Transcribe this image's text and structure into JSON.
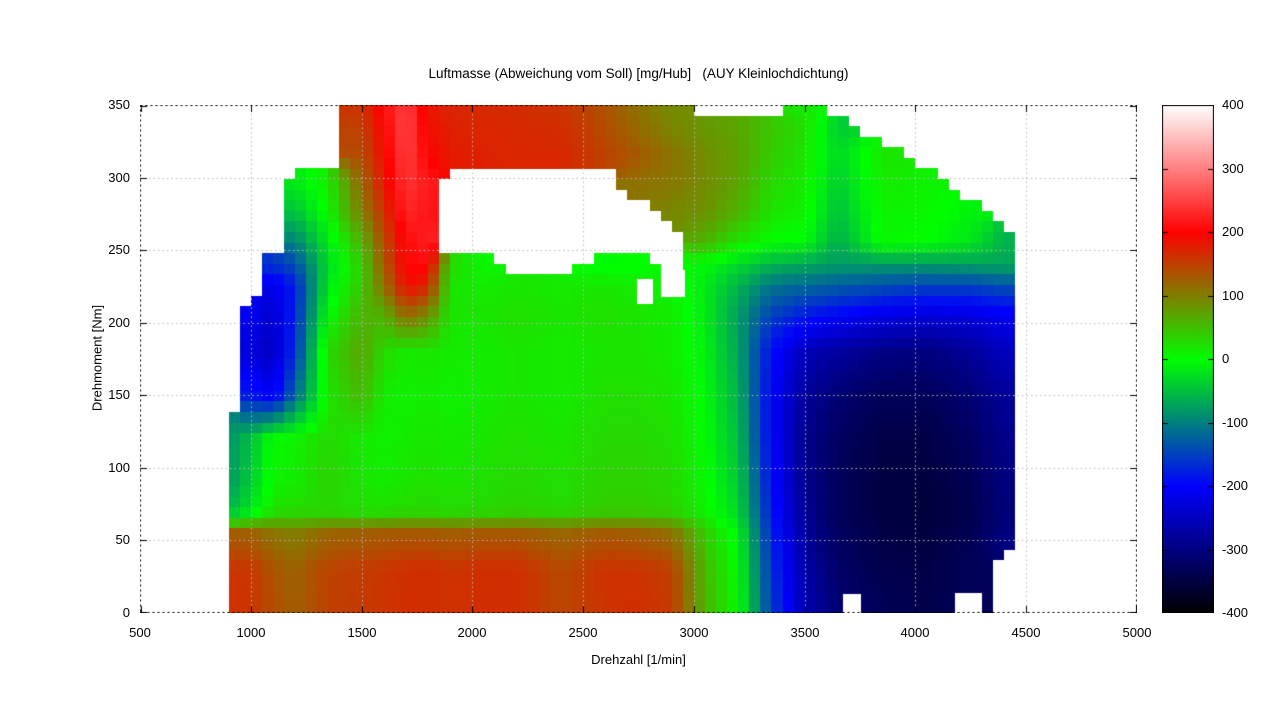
{
  "title": "Luftmasse (Abweichung vom Soll) [mg/Hub]   (AUY Kleinlochdichtung)",
  "xlabel": "Drehzahl [1/min]",
  "ylabel": "Drehmoment [Nm]",
  "chart_data": {
    "type": "heatmap",
    "xlabel": "Drehzahl [1/min]",
    "ylabel": "Drehmoment [Nm]",
    "x_range": [
      500,
      5000
    ],
    "y_range": [
      0,
      350
    ],
    "x_ticks": [
      500,
      1000,
      1500,
      2000,
      2500,
      3000,
      3500,
      4000,
      4500,
      5000
    ],
    "y_ticks": [
      0,
      50,
      100,
      150,
      200,
      250,
      300,
      350
    ],
    "grid_on": true,
    "colorbar": {
      "min": -400,
      "max": 400,
      "ticks": [
        400,
        300,
        200,
        100,
        0,
        -100,
        -200,
        -300,
        -400
      ],
      "palette": [
        [
          -400,
          "#000000"
        ],
        [
          -200,
          "#0000ff"
        ],
        [
          0,
          "#00ff00"
        ],
        [
          200,
          "#ff0000"
        ],
        [
          400,
          "#ffffff"
        ]
      ]
    },
    "grid": {
      "x": [
        900,
        1000,
        1100,
        1200,
        1350,
        1500,
        1600,
        1700,
        1800,
        1900,
        2050,
        2200,
        2400,
        2600,
        2750,
        2900,
        3050,
        3200,
        3350,
        3500,
        3650,
        3850,
        4050,
        4250,
        4400
      ],
      "y": [
        0,
        30,
        55,
        70,
        90,
        120,
        150,
        180,
        205,
        225,
        240,
        255,
        275,
        295,
        315,
        335,
        350
      ],
      "values": [
        [
          160,
          160,
          140,
          125,
          150,
          155,
          160,
          165,
          165,
          162,
          165,
          165,
          145,
          160,
          165,
          155,
          60,
          5,
          -150,
          -260,
          -310,
          -330,
          -340,
          -330,
          null
        ],
        [
          160,
          158,
          135,
          122,
          148,
          153,
          158,
          163,
          165,
          160,
          165,
          165,
          142,
          162,
          160,
          150,
          55,
          0,
          -160,
          -270,
          -320,
          -340,
          -345,
          -330,
          null
        ],
        [
          128,
          124,
          108,
          100,
          120,
          125,
          128,
          130,
          130,
          126,
          130,
          130,
          118,
          130,
          125,
          112,
          40,
          -10,
          -170,
          -280,
          -325,
          -345,
          -350,
          -335,
          -300
        ],
        [
          -55,
          -20,
          25,
          30,
          30,
          25,
          25,
          30,
          30,
          28,
          30,
          35,
          30,
          40,
          40,
          35,
          10,
          -30,
          -180,
          -285,
          -330,
          -350,
          -352,
          -340,
          -305
        ],
        [
          -80,
          -40,
          10,
          15,
          35,
          20,
          15,
          20,
          25,
          20,
          25,
          30,
          25,
          35,
          35,
          30,
          5,
          -40,
          -190,
          -290,
          -330,
          -350,
          -350,
          -335,
          -300
        ],
        [
          -85,
          -50,
          5,
          10,
          30,
          15,
          10,
          15,
          20,
          15,
          20,
          25,
          20,
          30,
          30,
          25,
          0,
          -50,
          -200,
          -290,
          -325,
          -345,
          -345,
          -325,
          -290
        ],
        [
          null,
          -180,
          -210,
          -120,
          20,
          55,
          15,
          10,
          15,
          10,
          15,
          20,
          15,
          25,
          25,
          20,
          -5,
          -60,
          -200,
          -280,
          -310,
          -330,
          -330,
          -310,
          -280
        ],
        [
          null,
          -230,
          -250,
          -160,
          30,
          70,
          30,
          15,
          20,
          15,
          15,
          20,
          15,
          20,
          20,
          15,
          -10,
          -70,
          -190,
          -255,
          -275,
          -295,
          -300,
          -280,
          -250
        ],
        [
          null,
          -210,
          -240,
          -170,
          0,
          60,
          60,
          120,
          90,
          20,
          20,
          25,
          20,
          25,
          20,
          15,
          -15,
          -75,
          -150,
          -180,
          -200,
          -220,
          -230,
          -225,
          -210
        ],
        [
          null,
          null,
          -220,
          -175,
          -20,
          45,
          110,
          190,
          170,
          20,
          15,
          20,
          15,
          20,
          15,
          10,
          -15,
          -60,
          -110,
          -120,
          -130,
          -140,
          -150,
          -150,
          -140
        ],
        [
          null,
          null,
          -160,
          -140,
          -30,
          40,
          130,
          205,
          210,
          30,
          5,
          null,
          null,
          -5,
          0,
          null,
          -5,
          -30,
          -60,
          -70,
          -80,
          -80,
          -80,
          -75,
          -70
        ],
        [
          null,
          null,
          null,
          -100,
          -20,
          60,
          140,
          205,
          225,
          null,
          null,
          null,
          null,
          null,
          null,
          null,
          60,
          20,
          0,
          -5,
          -65,
          5,
          0,
          -20,
          -60
        ],
        [
          null,
          null,
          null,
          -50,
          5,
          100,
          160,
          230,
          215,
          null,
          null,
          null,
          null,
          null,
          null,
          95,
          85,
          60,
          20,
          10,
          -50,
          10,
          5,
          -10,
          null
        ],
        [
          null,
          null,
          null,
          -20,
          15,
          120,
          180,
          240,
          220,
          null,
          null,
          null,
          null,
          null,
          110,
          105,
          90,
          70,
          30,
          15,
          -40,
          15,
          10,
          null,
          null
        ],
        [
          null,
          null,
          null,
          null,
          null,
          140,
          190,
          250,
          200,
          180,
          175,
          170,
          170,
          150,
          130,
          110,
          90,
          75,
          40,
          20,
          -30,
          20,
          null,
          null,
          null
        ],
        [
          null,
          null,
          null,
          null,
          null,
          150,
          200,
          255,
          190,
          175,
          170,
          168,
          165,
          140,
          115,
          95,
          80,
          70,
          45,
          25,
          -40,
          null,
          null,
          null,
          null
        ],
        [
          null,
          null,
          null,
          null,
          null,
          160,
          210,
          250,
          185,
          170,
          168,
          165,
          160,
          135,
          110,
          90,
          null,
          null,
          null,
          15,
          null,
          null,
          null,
          null,
          null
        ]
      ]
    },
    "mask_patches": [
      {
        "x1": 2745,
        "x2": 2815,
        "y1": 213,
        "y2": 230
      },
      {
        "x1": 2850,
        "x2": 2960,
        "y1": 218,
        "y2": 236
      },
      {
        "x1": 3675,
        "x2": 3755,
        "y1": 0,
        "y2": 13
      },
      {
        "x1": 4180,
        "x2": 4300,
        "y1": 0,
        "y2": 14
      }
    ]
  }
}
